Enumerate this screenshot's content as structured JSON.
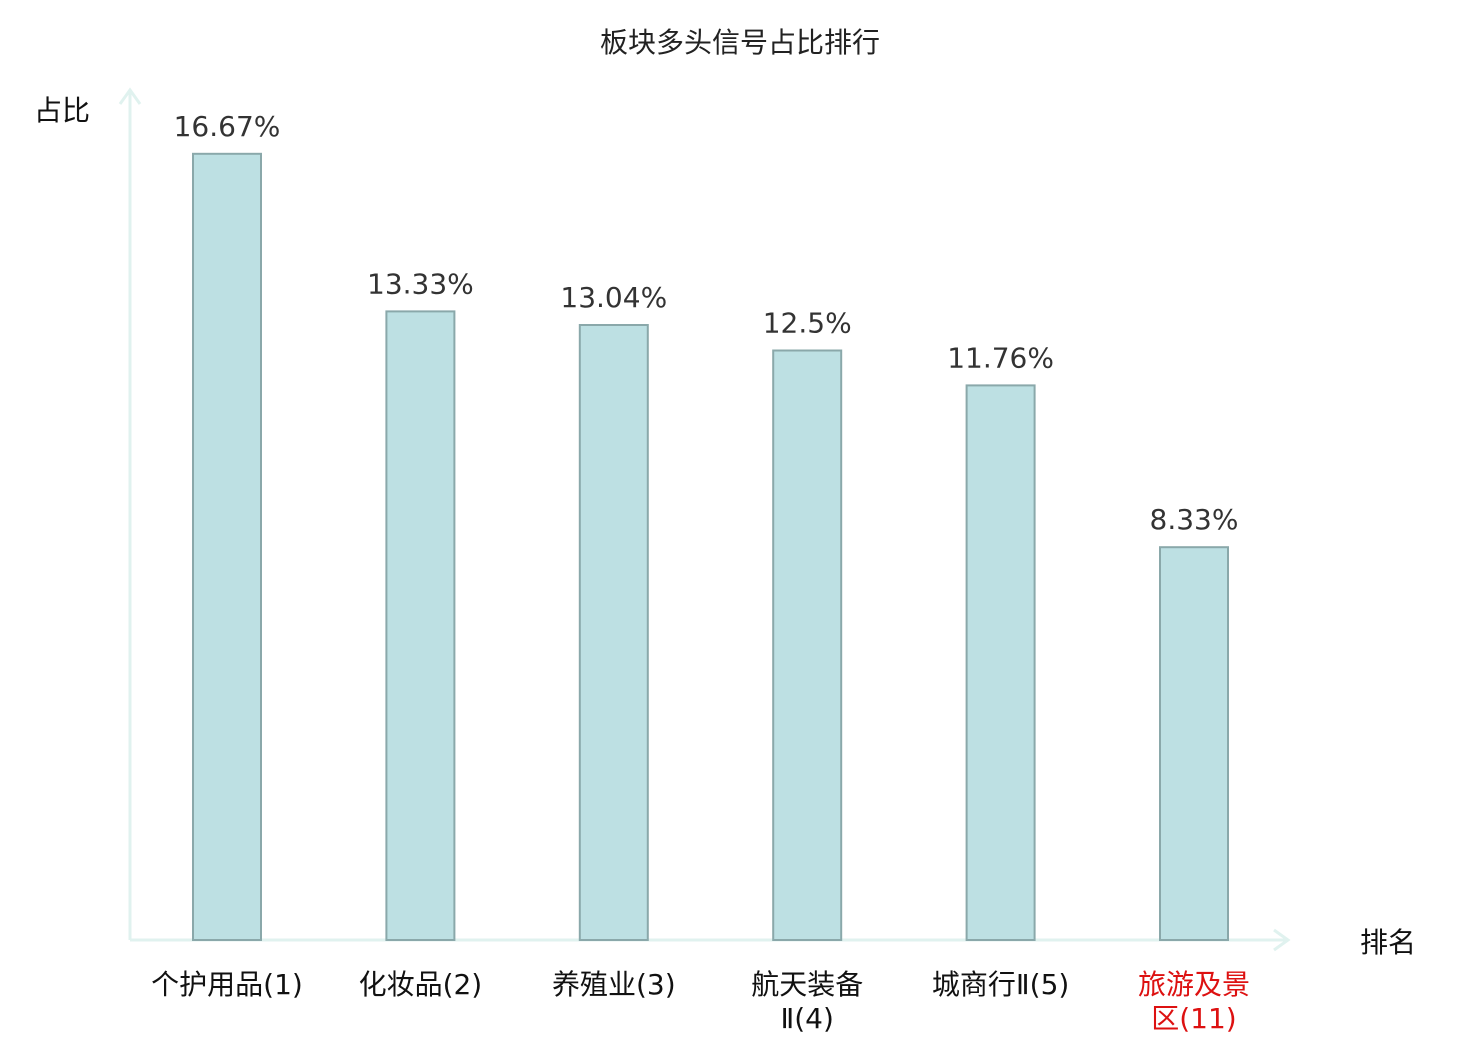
{
  "chart_data": {
    "type": "bar",
    "title": "板块多头信号占比排行",
    "ylabel": "占比",
    "xlabel": "排名",
    "categories": [
      "个护用品(1)",
      "化妆品(2)",
      "养殖业(3)",
      "航天装备Ⅱ(4)",
      "城商行Ⅱ(5)",
      "旅游及景区(11)"
    ],
    "category_lines": [
      [
        "个护用品(1)"
      ],
      [
        "化妆品(2)"
      ],
      [
        "养殖业(3)"
      ],
      [
        "航天装备",
        "Ⅱ(4)"
      ],
      [
        "城商行Ⅱ(5)"
      ],
      [
        "旅游及景",
        "区(11)"
      ]
    ],
    "values": [
      16.67,
      13.33,
      13.04,
      12.5,
      11.76,
      8.33
    ],
    "value_labels": [
      "16.67%",
      "13.33%",
      "13.04%",
      "12.5%",
      "11.76%",
      "8.33%"
    ],
    "highlight_index": 5,
    "ylim": [
      0,
      20
    ],
    "grid": false,
    "colors": {
      "bar_fill": "#bde0e3",
      "bar_stroke": "#8aa8aa",
      "axis": "#e0f2ef",
      "highlight_text": "#dd1111"
    }
  }
}
